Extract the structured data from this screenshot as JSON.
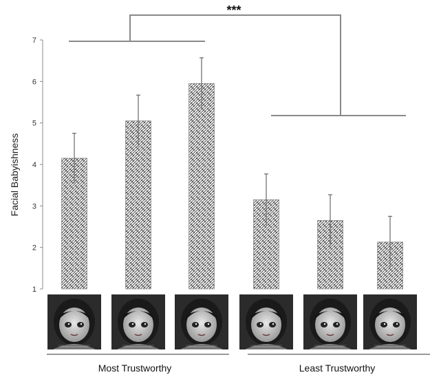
{
  "chart_data": {
    "type": "bar",
    "ylabel": "Facial Babyishness",
    "ylim": [
      1,
      7
    ],
    "yticks": [
      1,
      2,
      3,
      4,
      5,
      6,
      7
    ],
    "bars": [
      {
        "group": "Most Trustworthy",
        "value": 4.15,
        "error": 0.6
      },
      {
        "group": "Most Trustworthy",
        "value": 5.05,
        "error": 0.62
      },
      {
        "group": "Most Trustworthy",
        "value": 5.95,
        "error": 0.62
      },
      {
        "group": "Least Trustworthy",
        "value": 3.15,
        "error": 0.62
      },
      {
        "group": "Least Trustworthy",
        "value": 2.65,
        "error": 0.62
      },
      {
        "group": "Least Trustworthy",
        "value": 2.13,
        "error": 0.62
      }
    ],
    "groups": [
      "Most Trustworthy",
      "Least Trustworthy"
    ],
    "significance": "***",
    "bar_pattern": "basketweave hatch",
    "grid": false
  }
}
